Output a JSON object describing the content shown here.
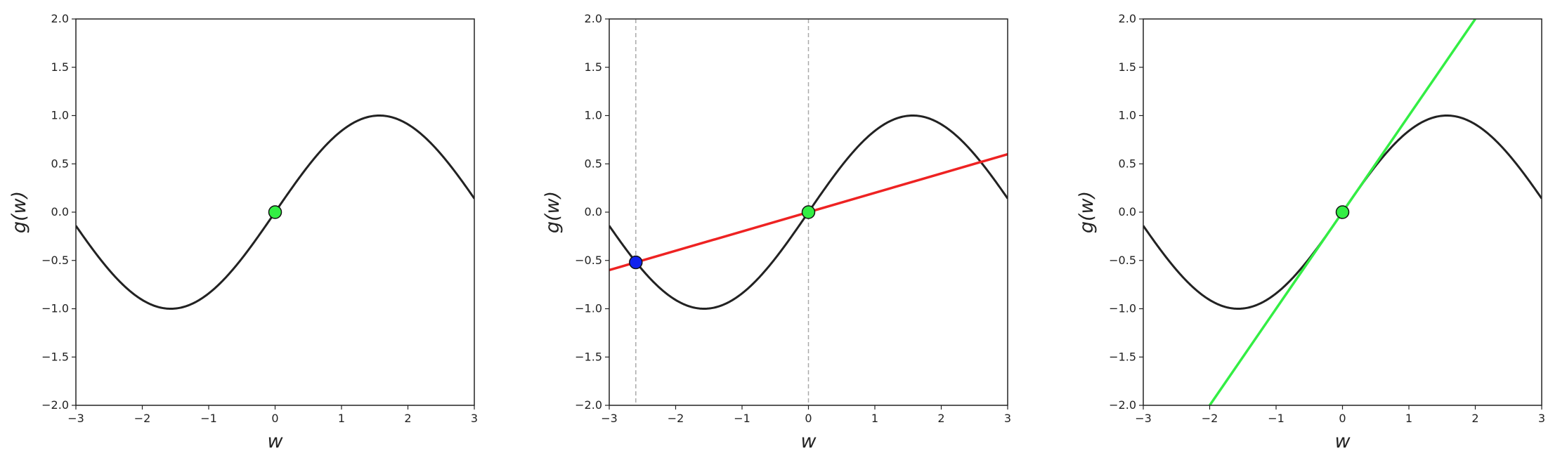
{
  "chart_data": [
    {
      "type": "line",
      "xlabel": "w",
      "ylabel": "g(w)",
      "xlim": [
        -3,
        3
      ],
      "ylim": [
        -2,
        2
      ],
      "xticks": [
        -3,
        -2,
        -1,
        0,
        1,
        2,
        3
      ],
      "yticks": [
        -2.0,
        -1.5,
        -1.0,
        -0.5,
        0.0,
        0.5,
        1.0,
        1.5,
        2.0
      ],
      "grid": false,
      "curve": {
        "function": "sin(w)",
        "color": "#222222"
      },
      "points": [
        {
          "x": 0.0,
          "y": 0.0,
          "color": "#33ee44"
        }
      ],
      "lines": [],
      "vlines": []
    },
    {
      "type": "line",
      "xlabel": "w",
      "ylabel": "g(w)",
      "xlim": [
        -3,
        3
      ],
      "ylim": [
        -2,
        2
      ],
      "xticks": [
        -3,
        -2,
        -1,
        0,
        1,
        2,
        3
      ],
      "yticks": [
        -2.0,
        -1.5,
        -1.0,
        -0.5,
        0.0,
        0.5,
        1.0,
        1.5,
        2.0
      ],
      "grid": false,
      "curve": {
        "function": "sin(w)",
        "color": "#222222"
      },
      "points": [
        {
          "x": -2.6,
          "y": -0.52,
          "color": "#1122ee"
        },
        {
          "x": 0.0,
          "y": 0.0,
          "color": "#33ee44"
        }
      ],
      "lines": [
        {
          "x": [
            -3,
            3
          ],
          "y": [
            -0.6,
            0.6
          ],
          "color": "#ee2222"
        }
      ],
      "vlines": [
        {
          "x": -2.6,
          "color": "#aaaaaa",
          "style": "dashed"
        },
        {
          "x": 0.0,
          "color": "#aaaaaa",
          "style": "dashed"
        }
      ]
    },
    {
      "type": "line",
      "xlabel": "w",
      "ylabel": "g(w)",
      "xlim": [
        -3,
        3
      ],
      "ylim": [
        -2,
        2
      ],
      "xticks": [
        -3,
        -2,
        -1,
        0,
        1,
        2,
        3
      ],
      "yticks": [
        -2.0,
        -1.5,
        -1.0,
        -0.5,
        0.0,
        0.5,
        1.0,
        1.5,
        2.0
      ],
      "grid": false,
      "curve": {
        "function": "sin(w)",
        "color": "#222222"
      },
      "points": [
        {
          "x": 0.0,
          "y": 0.0,
          "color": "#33ee44"
        }
      ],
      "lines": [
        {
          "x": [
            -2,
            2
          ],
          "y": [
            -2,
            2
          ],
          "color": "#33ee44"
        }
      ],
      "vlines": []
    }
  ]
}
